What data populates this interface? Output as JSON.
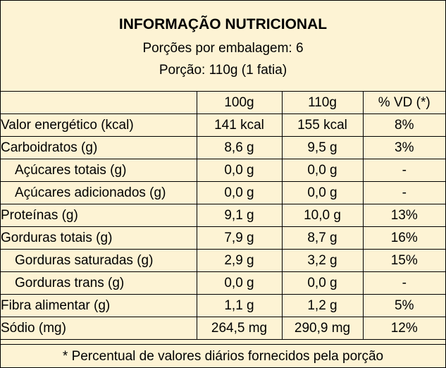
{
  "header": {
    "title": "INFORMAÇÃO NUTRICIONAL",
    "servings": "Porções por embalagem: 6",
    "portion": "Porção: 110g (1 fatia)"
  },
  "columns": [
    "",
    "100g",
    "110g",
    "% VD (*)"
  ],
  "rows": [
    {
      "name": "Valor energético (kcal)",
      "v100": "141 kcal",
      "v110": "155 kcal",
      "vd": "8%"
    },
    {
      "name": "Carboidratos (g)",
      "v100": "8,6 g",
      "v110": "9,5 g",
      "vd": "3%"
    },
    {
      "name": "Açúcares totais (g)",
      "v100": "0,0 g",
      "v110": "0,0 g",
      "vd": "-"
    },
    {
      "name": "Açúcares adicionados (g)",
      "v100": "0,0 g",
      "v110": "0,0 g",
      "vd": "-"
    },
    {
      "name": "Proteínas (g)",
      "v100": "9,1 g",
      "v110": "10,0 g",
      "vd": "13%"
    },
    {
      "name": "Gorduras totais (g)",
      "v100": "7,9 g",
      "v110": "8,7 g",
      "vd": "16%"
    },
    {
      "name": "Gorduras saturadas (g)",
      "v100": "2,9 g",
      "v110": "3,2 g",
      "vd": "15%"
    },
    {
      "name": "Gorduras trans (g)",
      "v100": "0,0 g",
      "v110": "0,0 g",
      "vd": "-"
    },
    {
      "name": "Fibra alimentar (g)",
      "v100": "1,1 g",
      "v110": "1,2 g",
      "vd": "5%"
    },
    {
      "name": "Sódio (mg)",
      "v100": "264,5 mg",
      "v110": "290,9 mg",
      "vd": "12%"
    }
  ],
  "footer": "* Percentual de valores diários fornecidos pela porção",
  "colors": {
    "background": "#fdf3d4",
    "border": "#000000"
  }
}
